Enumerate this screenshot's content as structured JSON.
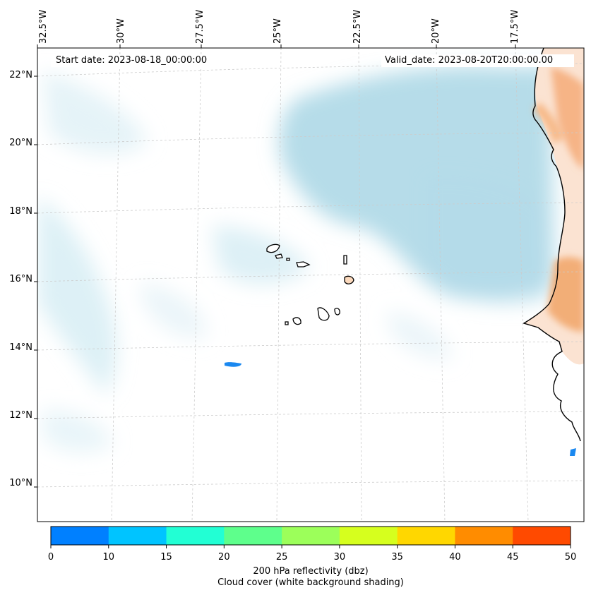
{
  "map": {
    "start_date": "Start date: 2023-08-18_00:00:00",
    "valid_date": "Valid_date: 2023-08-20T20:00:00.00",
    "longitude_labels": [
      "32.5°W",
      "30°W",
      "27.5°W",
      "25°W",
      "22.5°W",
      "20°W",
      "17.5°W"
    ],
    "latitude_labels": [
      "22°N",
      "20°N",
      "18°N",
      "16°N",
      "14°N",
      "12°N",
      "10°N"
    ]
  },
  "colorbar": {
    "ticks": [
      "0",
      "10",
      "15",
      "20",
      "25",
      "30",
      "35",
      "40",
      "45",
      "50"
    ],
    "colors": [
      "#0080ff",
      "#00c4ff",
      "#22ffd4",
      "#5eff8c",
      "#9cff5a",
      "#d6ff1e",
      "#ffd700",
      "#ff8c00",
      "#ff4a00"
    ],
    "label_line1": "200 hPa reflectivity (dbz)",
    "label_line2": "Cloud cover (white background shading)"
  },
  "colors": {
    "cloud": "#a8d8e8",
    "land_warm": "#f4a46c",
    "reflectivity_low": "#1a88f0"
  }
}
